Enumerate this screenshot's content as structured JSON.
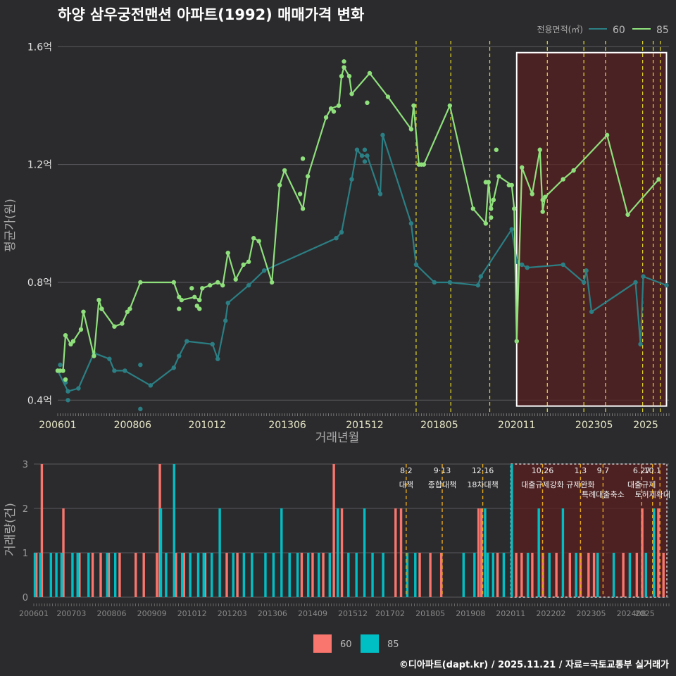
{
  "chart_data": [
    {
      "type": "line",
      "title": "하양 삼우궁전맨션 아파트(1992) 매매가격 변화",
      "xlabel": "거래년월",
      "ylabel": "평균가(원)",
      "legend_title": "전용면적(㎡)",
      "legend_position": "top-right",
      "ylim": [
        0.36,
        1.62
      ],
      "xlim": [
        2006.0,
        2025.75
      ],
      "y_ticks": [
        0.4,
        0.8,
        1.2,
        1.6
      ],
      "y_tick_labels": [
        "0.4억",
        "0.8억",
        "1.2억",
        "1.6억"
      ],
      "x_ticks": [
        2006.0,
        2008.42,
        2010.83,
        2013.42,
        2015.92,
        2018.33,
        2020.83,
        2023.33,
        2025.0
      ],
      "x_tick_labels": [
        "200601",
        "200806",
        "201012",
        "201306",
        "201512",
        "201805",
        "202011",
        "202305",
        "2025"
      ],
      "highlight_range": [
        2020.83,
        2025.67
      ],
      "policy_lines": [
        2017.58,
        2018.7,
        2019.96,
        2021.82,
        2023.0,
        2023.7,
        2024.9,
        2025.24,
        2025.47
      ],
      "series": [
        {
          "name": "60",
          "color": "#2b7f84",
          "line": [
            [
              2006.0,
              0.5
            ],
            [
              2006.33,
              0.43
            ],
            [
              2006.67,
              0.44
            ],
            [
              2007.17,
              0.56
            ],
            [
              2007.67,
              0.54
            ],
            [
              2007.83,
              0.5
            ],
            [
              2008.17,
              0.5
            ],
            [
              2009.0,
              0.45
            ],
            [
              2009.75,
              0.51
            ],
            [
              2009.92,
              0.55
            ],
            [
              2010.17,
              0.6
            ],
            [
              2011.0,
              0.59
            ],
            [
              2011.17,
              0.54
            ],
            [
              2011.42,
              0.67
            ],
            [
              2011.5,
              0.73
            ],
            [
              2012.17,
              0.79
            ],
            [
              2012.67,
              0.84
            ],
            [
              2015.0,
              0.95
            ],
            [
              2015.17,
              0.97
            ],
            [
              2015.5,
              1.15
            ],
            [
              2015.67,
              1.25
            ],
            [
              2015.83,
              1.23
            ],
            [
              2016.0,
              1.23
            ],
            [
              2016.42,
              1.1
            ],
            [
              2016.5,
              1.3
            ],
            [
              2017.42,
              1.0
            ],
            [
              2017.58,
              0.86
            ],
            [
              2018.17,
              0.8
            ],
            [
              2018.67,
              0.8
            ],
            [
              2019.58,
              0.79
            ],
            [
              2019.67,
              0.82
            ],
            [
              2020.67,
              0.98
            ],
            [
              2020.83,
              0.87
            ],
            [
              2021.0,
              0.86
            ],
            [
              2021.17,
              0.85
            ],
            [
              2022.33,
              0.86
            ],
            [
              2023.0,
              0.8
            ],
            [
              2023.08,
              0.84
            ],
            [
              2023.25,
              0.7
            ],
            [
              2024.67,
              0.8
            ],
            [
              2024.83,
              0.59
            ],
            [
              2024.92,
              0.82
            ],
            [
              2025.67,
              0.79
            ]
          ],
          "points": [
            [
              2006.0,
              0.5
            ],
            [
              2006.08,
              0.52
            ],
            [
              2006.25,
              0.46
            ],
            [
              2006.33,
              0.4
            ],
            [
              2008.67,
              0.52
            ],
            [
              2008.67,
              0.37
            ],
            [
              2015.92,
              1.21
            ],
            [
              2015.92,
              1.25
            ]
          ]
        },
        {
          "name": "85",
          "color": "#8fe07c",
          "line": [
            [
              2006.0,
              0.5
            ],
            [
              2006.17,
              0.5
            ],
            [
              2006.25,
              0.62
            ],
            [
              2006.42,
              0.59
            ],
            [
              2006.5,
              0.6
            ],
            [
              2006.75,
              0.64
            ],
            [
              2006.83,
              0.7
            ],
            [
              2007.17,
              0.55
            ],
            [
              2007.33,
              0.74
            ],
            [
              2007.42,
              0.71
            ],
            [
              2007.83,
              0.65
            ],
            [
              2008.08,
              0.66
            ],
            [
              2008.25,
              0.7
            ],
            [
              2008.33,
              0.71
            ],
            [
              2008.67,
              0.8
            ],
            [
              2009.75,
              0.8
            ],
            [
              2009.92,
              0.75
            ],
            [
              2010.0,
              0.74
            ],
            [
              2010.42,
              0.75
            ],
            [
              2010.58,
              0.74
            ],
            [
              2010.67,
              0.78
            ],
            [
              2010.92,
              0.79
            ],
            [
              2011.17,
              0.8
            ],
            [
              2011.33,
              0.79
            ],
            [
              2011.5,
              0.9
            ],
            [
              2011.75,
              0.81
            ],
            [
              2012.0,
              0.86
            ],
            [
              2012.17,
              0.87
            ],
            [
              2012.33,
              0.95
            ],
            [
              2012.5,
              0.94
            ],
            [
              2012.92,
              0.8
            ],
            [
              2013.17,
              1.13
            ],
            [
              2013.33,
              1.18
            ],
            [
              2013.92,
              1.05
            ],
            [
              2014.08,
              1.16
            ],
            [
              2014.67,
              1.36
            ],
            [
              2014.83,
              1.39
            ],
            [
              2015.08,
              1.4
            ],
            [
              2015.17,
              1.5
            ],
            [
              2015.25,
              1.53
            ],
            [
              2015.42,
              1.5
            ],
            [
              2015.5,
              1.44
            ],
            [
              2016.08,
              1.51
            ],
            [
              2016.67,
              1.43
            ],
            [
              2017.42,
              1.32
            ],
            [
              2017.5,
              1.4
            ],
            [
              2017.67,
              1.2
            ],
            [
              2017.83,
              1.2
            ],
            [
              2018.67,
              1.4
            ],
            [
              2019.42,
              1.05
            ],
            [
              2019.83,
              1.0
            ],
            [
              2019.92,
              1.14
            ],
            [
              2020.0,
              1.05
            ],
            [
              2020.08,
              1.08
            ],
            [
              2020.25,
              1.16
            ],
            [
              2020.67,
              1.13
            ],
            [
              2020.75,
              1.05
            ],
            [
              2020.83,
              0.6
            ],
            [
              2021.0,
              1.19
            ],
            [
              2021.33,
              1.1
            ],
            [
              2021.58,
              1.25
            ],
            [
              2021.67,
              1.04
            ],
            [
              2021.75,
              1.09
            ],
            [
              2022.33,
              1.15
            ],
            [
              2022.67,
              1.18
            ],
            [
              2023.75,
              1.3
            ],
            [
              2024.42,
              1.03
            ],
            [
              2025.42,
              1.15
            ]
          ],
          "points": [
            [
              2006.08,
              0.5
            ],
            [
              2006.25,
              0.47
            ],
            [
              2007.42,
              0.71
            ],
            [
              2009.92,
              0.71
            ],
            [
              2010.33,
              0.78
            ],
            [
              2010.5,
              0.72
            ],
            [
              2010.58,
              0.71
            ],
            [
              2013.83,
              1.1
            ],
            [
              2013.92,
              1.22
            ],
            [
              2014.92,
              1.38
            ],
            [
              2015.25,
              1.55
            ],
            [
              2016.0,
              1.41
            ],
            [
              2017.75,
              1.2
            ],
            [
              2019.83,
              1.14
            ],
            [
              2020.0,
              1.02
            ],
            [
              2020.08,
              1.08
            ],
            [
              2020.17,
              1.25
            ],
            [
              2020.58,
              1.13
            ],
            [
              2021.67,
              1.08
            ]
          ]
        }
      ]
    },
    {
      "type": "bar",
      "xlabel": "",
      "ylabel": "거래량(건)",
      "ylim": [
        0,
        3
      ],
      "y_ticks": [
        0,
        1,
        2,
        3
      ],
      "x_tick_labels": [
        "200601",
        "200703",
        "200806",
        "200909",
        "201012",
        "201203",
        "201306",
        "201409",
        "201512",
        "201702",
        "201805",
        "201908",
        "202011",
        "202202",
        "202305",
        "202408",
        "2025"
      ],
      "x_ticks": [
        2006.0,
        2007.17,
        2008.42,
        2009.67,
        2010.92,
        2012.17,
        2013.42,
        2014.67,
        2015.92,
        2017.08,
        2018.33,
        2019.58,
        2020.83,
        2022.08,
        2023.33,
        2024.58,
        2025.0
      ],
      "highlight_range": [
        2020.83,
        2025.75
      ],
      "legend": [
        "60",
        "85"
      ],
      "colors": {
        "60": "#f8766d",
        "85": "#00bfc4"
      },
      "policy_lines": [
        {
          "x": 2017.58,
          "date": "8·2",
          "label": "대책"
        },
        {
          "x": 2018.7,
          "date": "9·13",
          "label": "종합대책"
        },
        {
          "x": 2019.96,
          "date": "12·16",
          "label": "18차대책"
        },
        {
          "x": 2021.82,
          "date": "10.26",
          "label": "대출규제강화"
        },
        {
          "x": 2023.0,
          "date": "1.3",
          "label": "규제완화"
        },
        {
          "x": 2023.7,
          "date": "9.7",
          "label": "특례대출축소"
        },
        {
          "x": 2024.9,
          "date": "6.27",
          "label": "대출규제"
        },
        {
          "x": 2025.24,
          "date": "10.1",
          "label": "토허제확대"
        },
        {
          "x": 2025.47,
          "date": "",
          "label": ""
        }
      ],
      "bars_60": [
        [
          2006.08,
          1
        ],
        [
          2006.25,
          3
        ],
        [
          2006.92,
          2
        ],
        [
          2007.42,
          1
        ],
        [
          2007.83,
          1
        ],
        [
          2008.08,
          1
        ],
        [
          2008.33,
          1
        ],
        [
          2008.67,
          1
        ],
        [
          2009.17,
          1
        ],
        [
          2009.42,
          1
        ],
        [
          2009.83,
          1
        ],
        [
          2009.92,
          3
        ],
        [
          2010.42,
          1
        ],
        [
          2010.67,
          1
        ],
        [
          2011.33,
          1
        ],
        [
          2012.0,
          1
        ],
        [
          2012.33,
          1
        ],
        [
          2014.33,
          1
        ],
        [
          2014.67,
          1
        ],
        [
          2015.0,
          1
        ],
        [
          2015.33,
          3
        ],
        [
          2015.58,
          2
        ],
        [
          2017.25,
          2
        ],
        [
          2017.42,
          2
        ],
        [
          2018.0,
          1
        ],
        [
          2018.33,
          1
        ],
        [
          2018.67,
          1
        ],
        [
          2019.83,
          2
        ],
        [
          2019.92,
          2
        ],
        [
          2020.42,
          1
        ],
        [
          2021.0,
          1
        ],
        [
          2021.17,
          1
        ],
        [
          2021.5,
          1
        ],
        [
          2021.83,
          1
        ],
        [
          2022.25,
          1
        ],
        [
          2022.67,
          1
        ],
        [
          2023.0,
          1
        ],
        [
          2023.25,
          1
        ],
        [
          2023.42,
          1
        ],
        [
          2024.33,
          1
        ],
        [
          2024.75,
          1
        ],
        [
          2024.92,
          2
        ],
        [
          2025.42,
          2
        ],
        [
          2025.58,
          1
        ]
      ],
      "bars_85": [
        [
          2006.0,
          1
        ],
        [
          2006.17,
          1
        ],
        [
          2006.5,
          1
        ],
        [
          2006.67,
          1
        ],
        [
          2006.83,
          1
        ],
        [
          2007.17,
          1
        ],
        [
          2007.33,
          1
        ],
        [
          2007.67,
          1
        ],
        [
          2008.25,
          1
        ],
        [
          2008.5,
          1
        ],
        [
          2009.92,
          2
        ],
        [
          2010.08,
          1
        ],
        [
          2010.33,
          3
        ],
        [
          2010.58,
          1
        ],
        [
          2010.83,
          1
        ],
        [
          2011.08,
          1
        ],
        [
          2011.25,
          1
        ],
        [
          2011.5,
          1
        ],
        [
          2011.75,
          2
        ],
        [
          2012.17,
          1
        ],
        [
          2012.5,
          1
        ],
        [
          2012.75,
          1
        ],
        [
          2013.17,
          1
        ],
        [
          2013.42,
          1
        ],
        [
          2013.67,
          2
        ],
        [
          2013.92,
          1
        ],
        [
          2014.17,
          1
        ],
        [
          2014.5,
          1
        ],
        [
          2014.83,
          1
        ],
        [
          2015.17,
          1
        ],
        [
          2015.42,
          2
        ],
        [
          2015.75,
          1
        ],
        [
          2016.0,
          1
        ],
        [
          2016.25,
          2
        ],
        [
          2016.5,
          1
        ],
        [
          2016.83,
          1
        ],
        [
          2017.58,
          1
        ],
        [
          2017.83,
          1
        ],
        [
          2019.33,
          1
        ],
        [
          2019.67,
          1
        ],
        [
          2020.0,
          2
        ],
        [
          2020.08,
          1
        ],
        [
          2020.25,
          1
        ],
        [
          2020.58,
          1
        ],
        [
          2020.83,
          3
        ],
        [
          2021.33,
          1
        ],
        [
          2021.67,
          2
        ],
        [
          2022.0,
          1
        ],
        [
          2022.42,
          2
        ],
        [
          2022.83,
          1
        ],
        [
          2023.5,
          1
        ],
        [
          2024.0,
          1
        ],
        [
          2024.5,
          1
        ],
        [
          2025.0,
          1
        ],
        [
          2025.25,
          2
        ]
      ]
    }
  ],
  "footer": {
    "credit": "©디아파트(dapt.kr) / 2025.11.21 / 자료=국토교통부 실거래가"
  }
}
